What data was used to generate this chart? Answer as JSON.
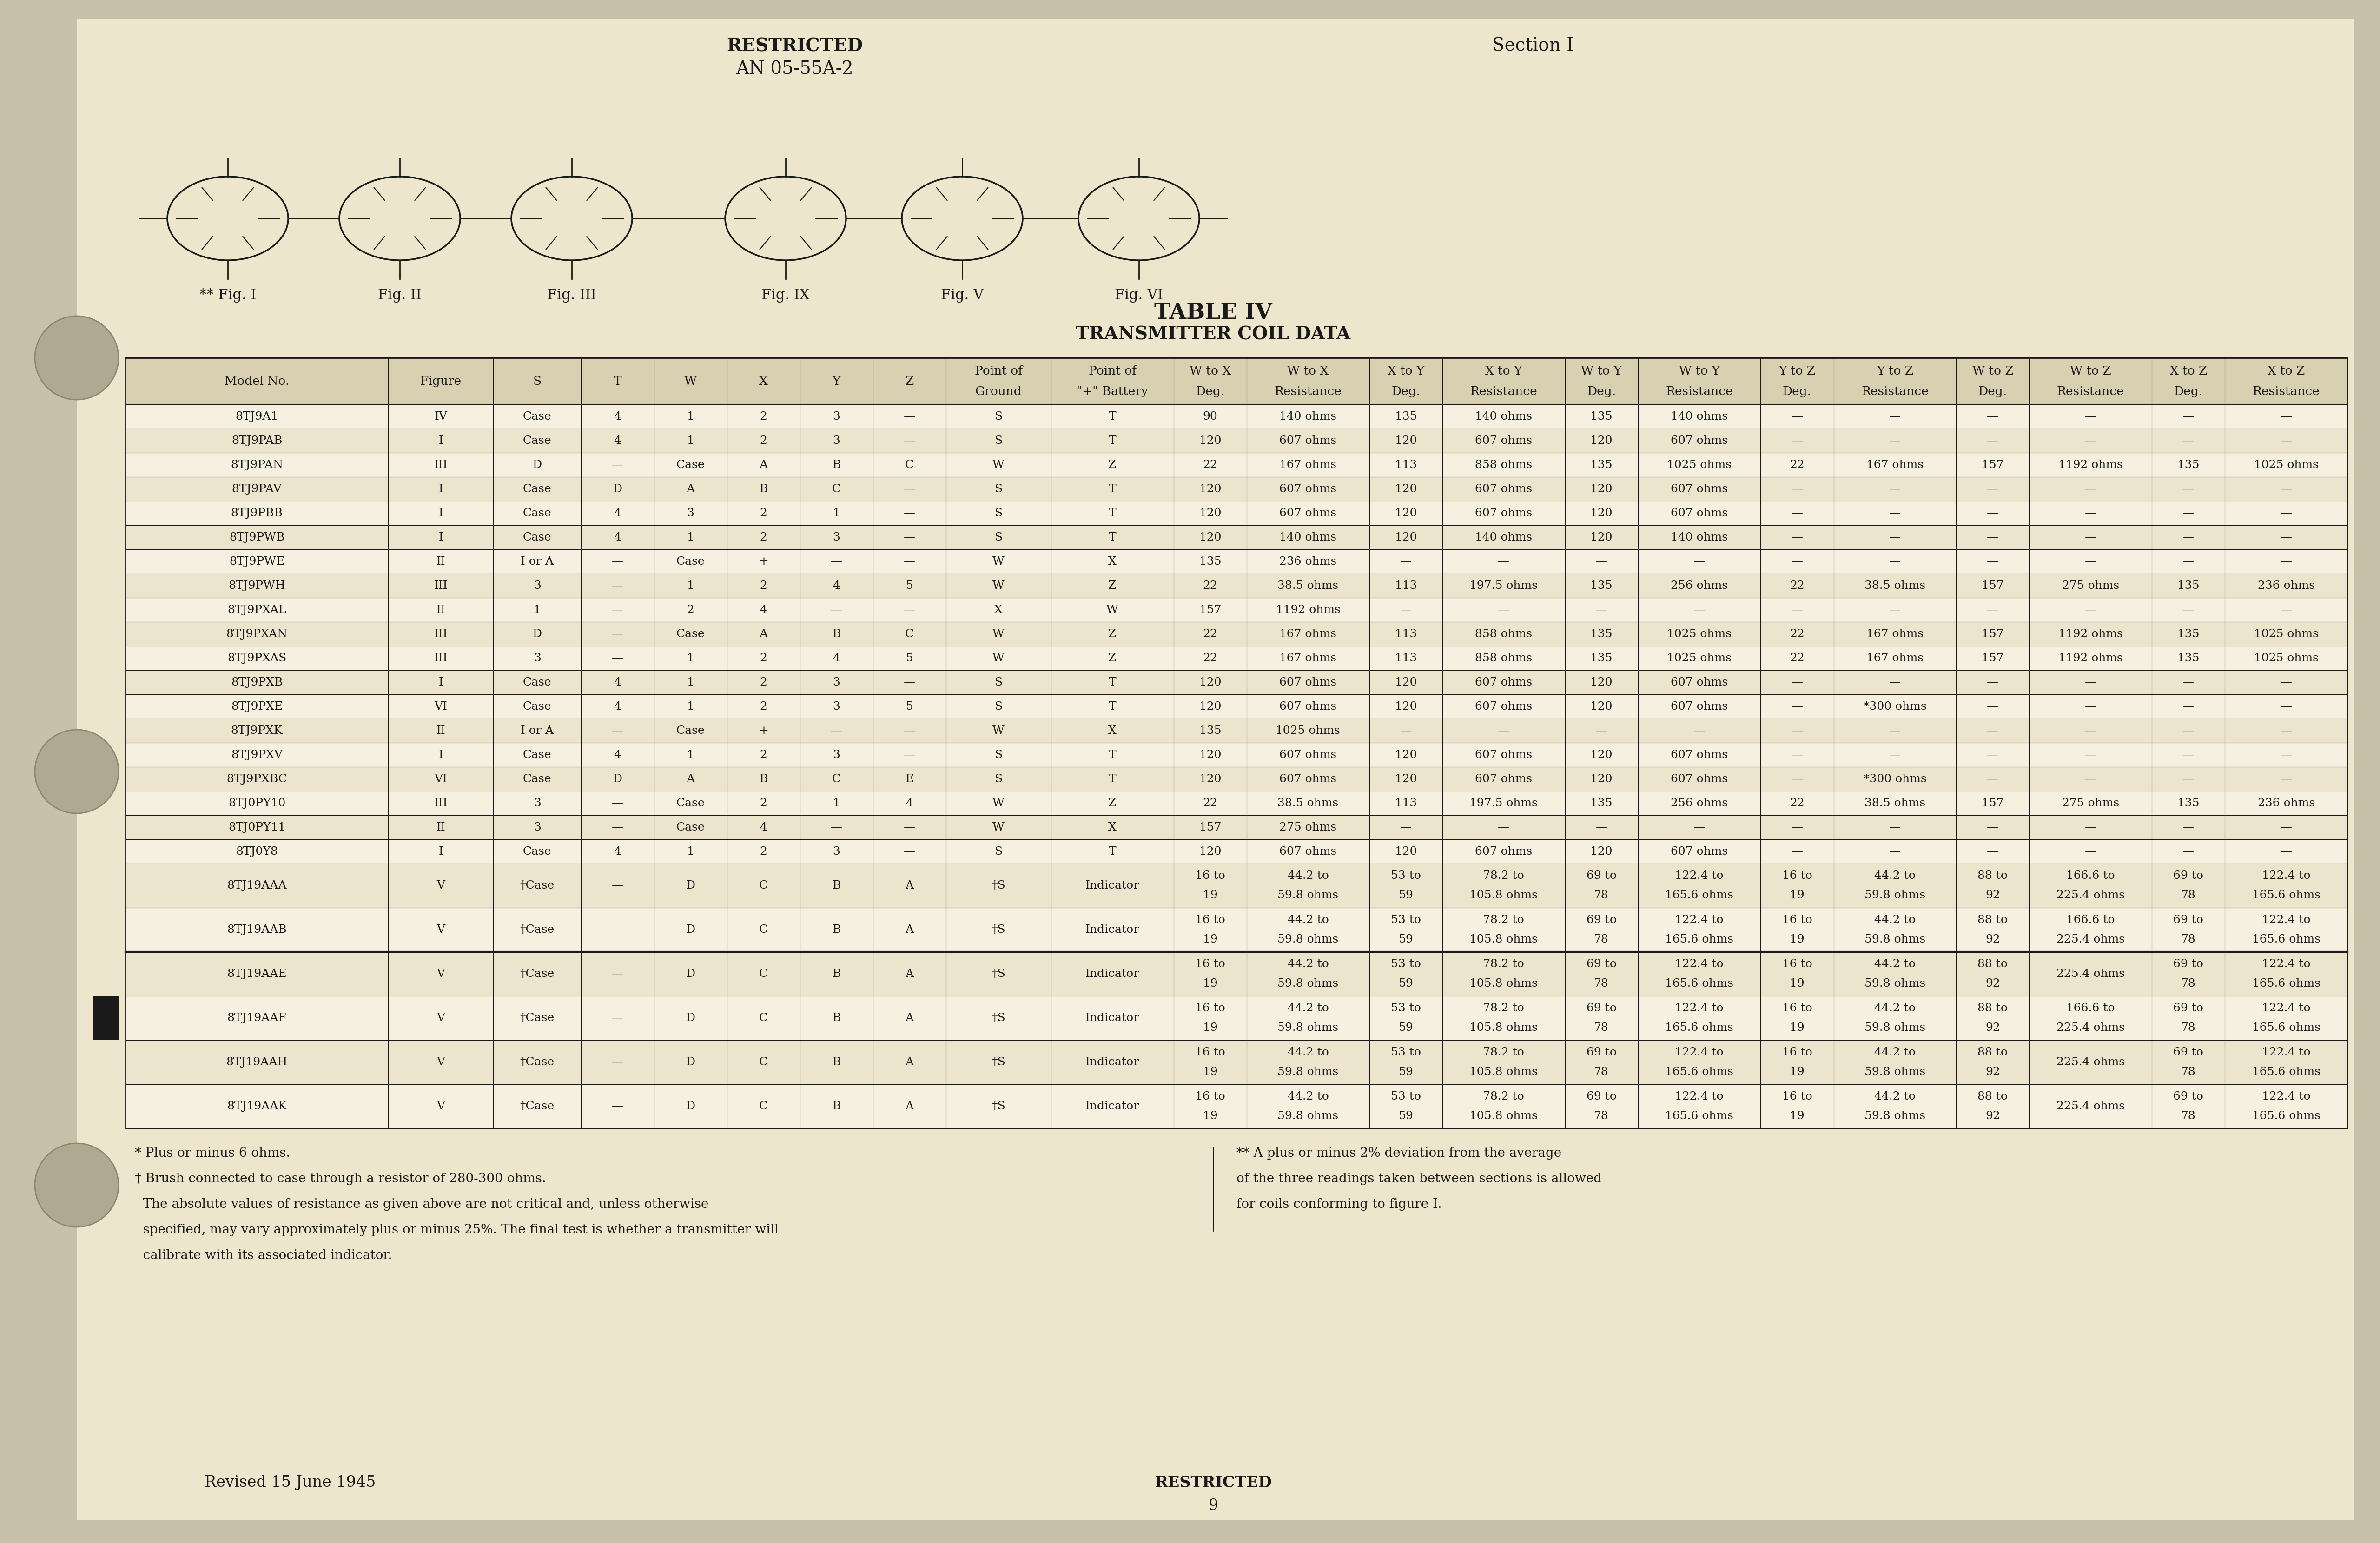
{
  "bg_color": "#f5f0e0",
  "page_bg": "#ede5cc",
  "text_color": "#1a1a1a",
  "header_left1": "RESTRICTED",
  "header_left2": "AN 05-55A-2",
  "header_right": "Section I",
  "table_title": "TABLE IV",
  "table_subtitle": "TRANSMITTER COIL DATA",
  "footer_left": "Revised 15 June 1945",
  "footer_center": "RESTRICTED",
  "footer_page": "9",
  "fig_labels": [
    "** Fig. I",
    "Fig. II",
    "Fig. III",
    "Fig. IX",
    "Fig. V",
    "Fig. VI"
  ],
  "col_defs": [
    [
      "Model No.",
      0.09
    ],
    [
      "Figure",
      0.036
    ],
    [
      "S",
      0.03
    ],
    [
      "T",
      0.025
    ],
    [
      "W",
      0.025
    ],
    [
      "X",
      0.025
    ],
    [
      "Y",
      0.025
    ],
    [
      "Z",
      0.025
    ],
    [
      "Point of\nGround",
      0.036
    ],
    [
      "Point of\n\"+\" Battery",
      0.042
    ],
    [
      "W to X\nDeg.",
      0.025
    ],
    [
      "W to X\nResistance",
      0.042
    ],
    [
      "X to Y\nDeg.",
      0.025
    ],
    [
      "X to Y\nResistance",
      0.042
    ],
    [
      "W to Y\nDeg.",
      0.025
    ],
    [
      "W to Y\nResistance",
      0.042
    ],
    [
      "Y to Z\nDeg.",
      0.025
    ],
    [
      "Y to Z\nResistance",
      0.042
    ],
    [
      "W to Z\nDeg.",
      0.025
    ],
    [
      "W to Z\nResistance",
      0.042
    ],
    [
      "X to Z\nDeg.",
      0.025
    ],
    [
      "X to Z\nResistance",
      0.042
    ]
  ],
  "rows": [
    [
      "8TJ9A1",
      "IV",
      "Case",
      "4",
      "1",
      "2",
      "3",
      "—",
      "S",
      "T",
      "90",
      "140 ohms",
      "135",
      "140 ohms",
      "135",
      "140 ohms",
      "—",
      "—",
      "—",
      "—",
      "—",
      "—"
    ],
    [
      "8TJ9PAB",
      "I",
      "Case",
      "4",
      "1",
      "2",
      "3",
      "—",
      "S",
      "T",
      "120",
      "607 ohms",
      "120",
      "607 ohms",
      "120",
      "607 ohms",
      "—",
      "—",
      "—",
      "—",
      "—",
      "—"
    ],
    [
      "8TJ9PAN",
      "III",
      "D",
      "—",
      "Case",
      "A",
      "B",
      "C",
      "W",
      "Z",
      "22",
      "167 ohms",
      "113",
      "858 ohms",
      "135",
      "1025 ohms",
      "22",
      "167 ohms",
      "157",
      "1192 ohms",
      "135",
      "1025 ohms"
    ],
    [
      "8TJ9PAV",
      "I",
      "Case",
      "D",
      "A",
      "B",
      "C",
      "—",
      "S",
      "T",
      "120",
      "607 ohms",
      "120",
      "607 ohms",
      "120",
      "607 ohms",
      "—",
      "—",
      "—",
      "—",
      "—",
      "—"
    ],
    [
      "8TJ9PBB",
      "I",
      "Case",
      "4",
      "3",
      "2",
      "1",
      "—",
      "S",
      "T",
      "120",
      "607 ohms",
      "120",
      "607 ohms",
      "120",
      "607 ohms",
      "—",
      "—",
      "—",
      "—",
      "—",
      "—"
    ],
    [
      "8TJ9PWB",
      "I",
      "Case",
      "4",
      "1",
      "2",
      "3",
      "—",
      "S",
      "T",
      "120",
      "140 ohms",
      "120",
      "140 ohms",
      "120",
      "140 ohms",
      "—",
      "—",
      "—",
      "—",
      "—",
      "—"
    ],
    [
      "8TJ9PWE",
      "II",
      "I or A",
      "—",
      "Case",
      "+",
      "—",
      "—",
      "W",
      "X",
      "135",
      "236 ohms",
      "—",
      "—",
      "—",
      "—",
      "—",
      "—",
      "—",
      "—",
      "—",
      "—"
    ],
    [
      "8TJ9PWH",
      "III",
      "3",
      "—",
      "1",
      "2",
      "4",
      "5",
      "W",
      "Z",
      "22",
      "38.5 ohms",
      "113",
      "197.5 ohms",
      "135",
      "256 ohms",
      "22",
      "38.5 ohms",
      "157",
      "275 ohms",
      "135",
      "236 ohms"
    ],
    [
      "8TJ9PXAL",
      "II",
      "1",
      "—",
      "2",
      "4",
      "—",
      "—",
      "X",
      "W",
      "157",
      "1192 ohms",
      "—",
      "—",
      "—",
      "—",
      "—",
      "—",
      "—",
      "—",
      "—",
      "—"
    ],
    [
      "8TJ9PXAN",
      "III",
      "D",
      "—",
      "Case",
      "A",
      "B",
      "C",
      "W",
      "Z",
      "22",
      "167 ohms",
      "113",
      "858 ohms",
      "135",
      "1025 ohms",
      "22",
      "167 ohms",
      "157",
      "1192 ohms",
      "135",
      "1025 ohms"
    ],
    [
      "8TJ9PXAS",
      "III",
      "3",
      "—",
      "1",
      "2",
      "4",
      "5",
      "W",
      "Z",
      "22",
      "167 ohms",
      "113",
      "858 ohms",
      "135",
      "1025 ohms",
      "22",
      "167 ohms",
      "157",
      "1192 ohms",
      "135",
      "1025 ohms"
    ],
    [
      "8TJ9PXB",
      "I",
      "Case",
      "4",
      "1",
      "2",
      "3",
      "—",
      "S",
      "T",
      "120",
      "607 ohms",
      "120",
      "607 ohms",
      "120",
      "607 ohms",
      "—",
      "—",
      "—",
      "—",
      "—",
      "—"
    ],
    [
      "8TJ9PXE",
      "VI",
      "Case",
      "4",
      "1",
      "2",
      "3",
      "5",
      "S",
      "T",
      "120",
      "607 ohms",
      "120",
      "607 ohms",
      "120",
      "607 ohms",
      "—",
      "*300 ohms",
      "—",
      "—",
      "—",
      "—"
    ],
    [
      "8TJ9PXK",
      "II",
      "I or A",
      "—",
      "Case",
      "+",
      "—",
      "—",
      "W",
      "X",
      "135",
      "1025 ohms",
      "—",
      "—",
      "—",
      "—",
      "—",
      "—",
      "—",
      "—",
      "—",
      "—"
    ],
    [
      "8TJ9PXV",
      "I",
      "Case",
      "4",
      "1",
      "2",
      "3",
      "—",
      "S",
      "T",
      "120",
      "607 ohms",
      "120",
      "607 ohms",
      "120",
      "607 ohms",
      "—",
      "—",
      "—",
      "—",
      "—",
      "—"
    ],
    [
      "8TJ9PXBC",
      "VI",
      "Case",
      "D",
      "A",
      "B",
      "C",
      "E",
      "S",
      "T",
      "120",
      "607 ohms",
      "120",
      "607 ohms",
      "120",
      "607 ohms",
      "—",
      "*300 ohms",
      "—",
      "—",
      "—",
      "—"
    ],
    [
      "8TJ0PY10",
      "III",
      "3",
      "—",
      "Case",
      "2",
      "1",
      "4",
      "W",
      "Z",
      "22",
      "38.5 ohms",
      "113",
      "197.5 ohms",
      "135",
      "256 ohms",
      "22",
      "38.5 ohms",
      "157",
      "275 ohms",
      "135",
      "236 ohms"
    ],
    [
      "8TJ0PY11",
      "II",
      "3",
      "—",
      "Case",
      "4",
      "—",
      "—",
      "W",
      "X",
      "157",
      "275 ohms",
      "—",
      "—",
      "—",
      "—",
      "—",
      "—",
      "—",
      "—",
      "—",
      "—"
    ],
    [
      "8TJ0Y8",
      "I",
      "Case",
      "4",
      "1",
      "2",
      "3",
      "—",
      "S",
      "T",
      "120",
      "607 ohms",
      "120",
      "607 ohms",
      "120",
      "607 ohms",
      "—",
      "—",
      "—",
      "—",
      "—",
      "—"
    ],
    [
      "8TJ19AAA",
      "V",
      "†Case",
      "—",
      "D",
      "C",
      "B",
      "A",
      "†S",
      "Indicator",
      "16 to\n19",
      "44.2 to\n59.8 ohms",
      "53 to\n59",
      "78.2 to\n105.8 ohms",
      "69 to\n78",
      "122.4 to\n165.6 ohms",
      "16 to\n19",
      "44.2 to\n59.8 ohms",
      "88 to\n92",
      "166.6 to\n225.4 ohms",
      "69 to\n78",
      "122.4 to\n165.6 ohms"
    ],
    [
      "8TJ19AAB",
      "V",
      "†Case",
      "—",
      "D",
      "C",
      "B",
      "A",
      "†S",
      "Indicator",
      "16 to\n19",
      "44.2 to\n59.8 ohms",
      "53 to\n59",
      "78.2 to\n105.8 ohms",
      "69 to\n78",
      "122.4 to\n165.6 ohms",
      "16 to\n19",
      "44.2 to\n59.8 ohms",
      "88 to\n92",
      "166.6 to\n225.4 ohms",
      "69 to\n78",
      "122.4 to\n165.6 ohms"
    ],
    [
      "8TJ19AAE",
      "V",
      "†Case",
      "—",
      "D",
      "C",
      "B",
      "A",
      "†S",
      "Indicator",
      "16 to\n19",
      "44.2 to\n59.8 ohms",
      "53 to\n59",
      "78.2 to\n105.8 ohms",
      "69 to\n78",
      "122.4 to\n165.6 ohms",
      "16 to\n19",
      "44.2 to\n59.8 ohms",
      "88 to\n92",
      "225.4 ohms",
      "69 to\n78",
      "122.4 to\n165.6 ohms"
    ],
    [
      "8TJ19AAF",
      "V",
      "†Case",
      "—",
      "D",
      "C",
      "B",
      "A",
      "†S",
      "Indicator",
      "16 to\n19",
      "44.2 to\n59.8 ohms",
      "53 to\n59",
      "78.2 to\n105.8 ohms",
      "69 to\n78",
      "122.4 to\n165.6 ohms",
      "16 to\n19",
      "44.2 to\n59.8 ohms",
      "88 to\n92",
      "166.6 to\n225.4 ohms",
      "69 to\n78",
      "122.4 to\n165.6 ohms"
    ],
    [
      "8TJ19AAH",
      "V",
      "†Case",
      "—",
      "D",
      "C",
      "B",
      "A",
      "†S",
      "Indicator",
      "16 to\n19",
      "44.2 to\n59.8 ohms",
      "53 to\n59",
      "78.2 to\n105.8 ohms",
      "69 to\n78",
      "122.4 to\n165.6 ohms",
      "16 to\n19",
      "44.2 to\n59.8 ohms",
      "88 to\n92",
      "225.4 ohms",
      "69 to\n78",
      "122.4 to\n165.6 ohms"
    ],
    [
      "8TJ19AAK",
      "V",
      "†Case",
      "—",
      "D",
      "C",
      "B",
      "A",
      "†S",
      "Indicator",
      "16 to\n19",
      "44.2 to\n59.8 ohms",
      "53 to\n59",
      "78.2 to\n105.8 ohms",
      "69 to\n78",
      "122.4 to\n165.6 ohms",
      "16 to\n19",
      "44.2 to\n59.8 ohms",
      "88 to\n92",
      "225.4 ohms",
      "69 to\n78",
      "122.4 to\n165.6 ohms"
    ]
  ],
  "thick_line_after_rows": [
    20
  ],
  "left_bar_rows": [
    22
  ],
  "footnotes_left": [
    "* Plus or minus 6 ohms.",
    "† Brush connected to case through a resistor of 280-300 ohms.",
    "  The absolute values of resistance as given above are not critical and, unless otherwise",
    "  specified, may vary approximately plus or minus 25%. The final test is whether a transmitter will",
    "  calibrate with its associated indicator."
  ],
  "footnotes_right": [
    "** A plus or minus 2% deviation from the average",
    "of the three readings taken between sections is allowed",
    "for coils conforming to figure I."
  ]
}
